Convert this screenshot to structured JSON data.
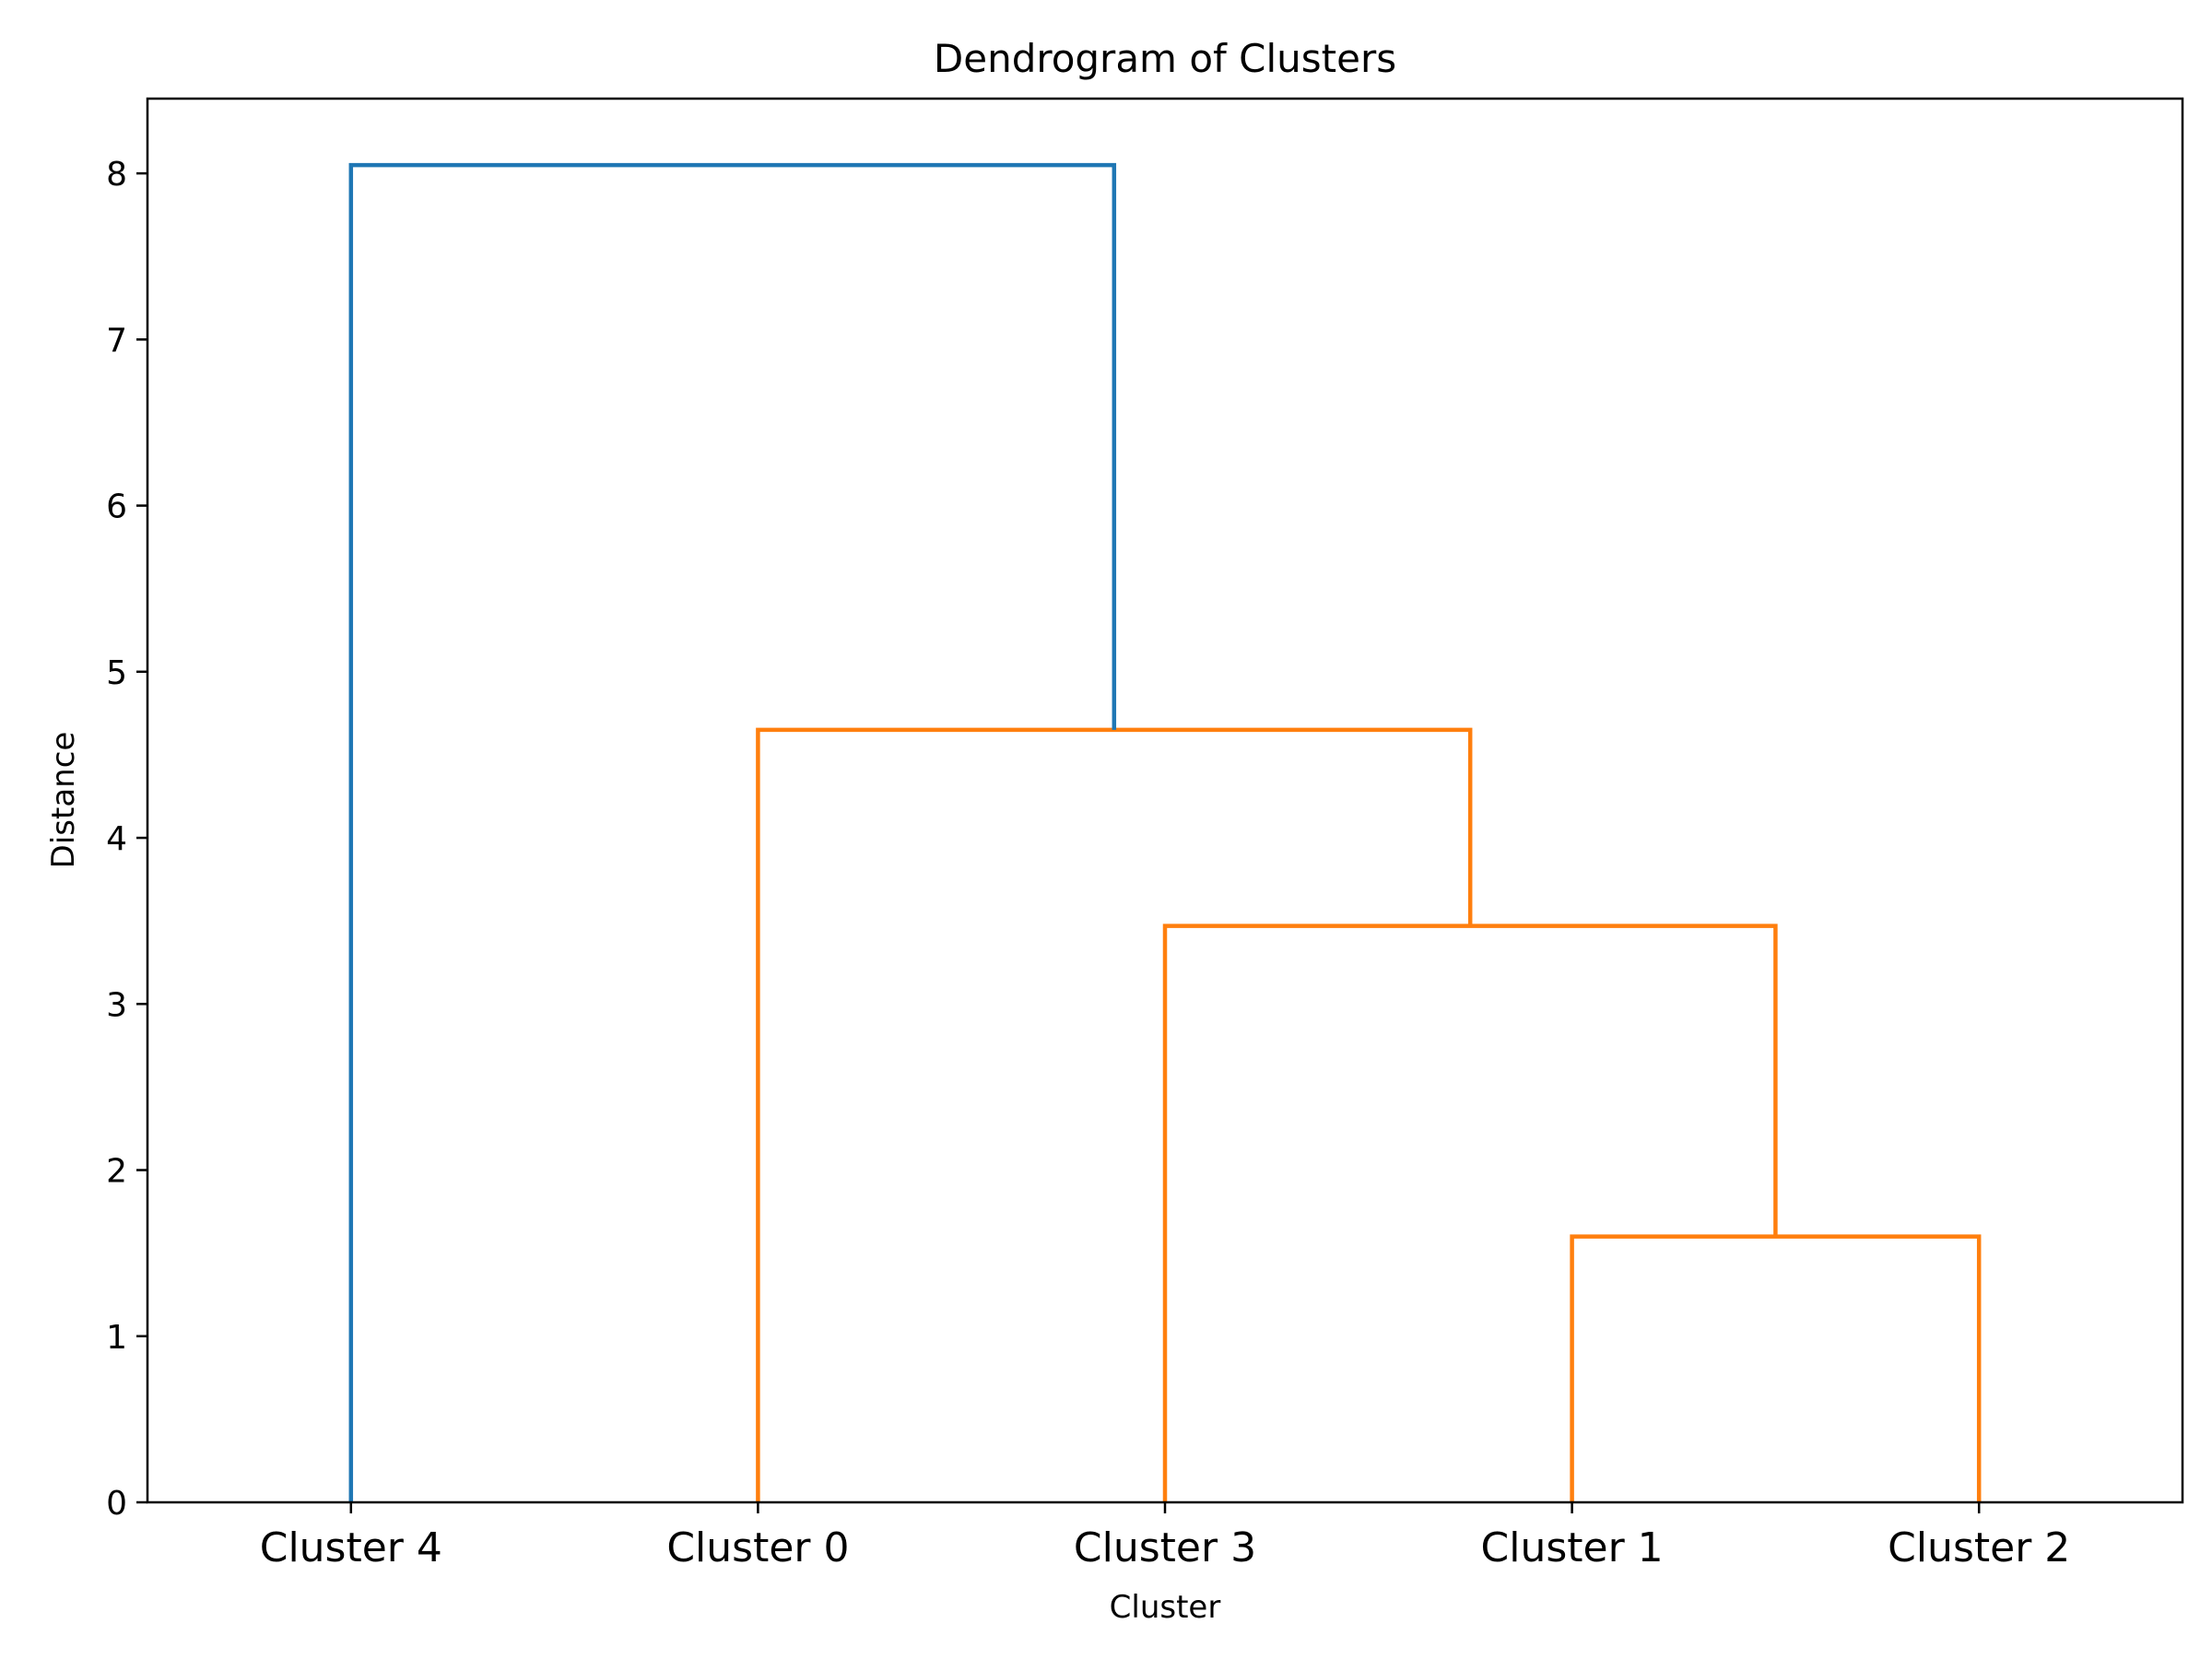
{
  "chart_data": {
    "type": "dendrogram",
    "title": "Dendrogram of Clusters",
    "xlabel": "Cluster",
    "ylabel": "Distance",
    "ylim": [
      0,
      8.45
    ],
    "yticks": [
      0,
      1,
      2,
      3,
      4,
      5,
      6,
      7,
      8
    ],
    "leaves": [
      "Cluster 4",
      "Cluster 0",
      "Cluster 3",
      "Cluster 1",
      "Cluster 2"
    ],
    "merges": [
      {
        "left": "Cluster 1",
        "right": "Cluster 2",
        "distance": 1.6,
        "color": "#ff7f0e"
      },
      {
        "left": "Cluster 3",
        "right": "Cluster 1 + Cluster 2",
        "distance": 3.47,
        "color": "#ff7f0e"
      },
      {
        "left": "Cluster 0",
        "right": "Cluster 3 + Cluster 1 + Cluster 2",
        "distance": 4.65,
        "color": "#ff7f0e"
      },
      {
        "left": "Cluster 4",
        "right": "Cluster 0 + Cluster 3 + Cluster 1 + Cluster 2",
        "distance": 8.05,
        "color": "#1f77b4"
      }
    ],
    "links": [
      {
        "leftPos": 3,
        "leftH": 0,
        "rightPos": 4,
        "rightH": 0,
        "height": 1.6,
        "color": "#ff7f0e"
      },
      {
        "leftPos": 2,
        "leftH": 0,
        "rightPos": 3.5,
        "rightH": 1.6,
        "height": 3.47,
        "color": "#ff7f0e"
      },
      {
        "leftPos": 1,
        "leftH": 0,
        "rightPos": 2.75,
        "rightH": 3.47,
        "height": 4.65,
        "color": "#ff7f0e"
      },
      {
        "leftPos": 0,
        "leftH": 0,
        "rightPos": 1.875,
        "rightH": 4.65,
        "height": 8.05,
        "color": "#1f77b4"
      }
    ],
    "colors": {
      "above_threshold": "#1f77b4",
      "cluster": "#ff7f0e"
    },
    "grid": false,
    "legend": "none"
  }
}
